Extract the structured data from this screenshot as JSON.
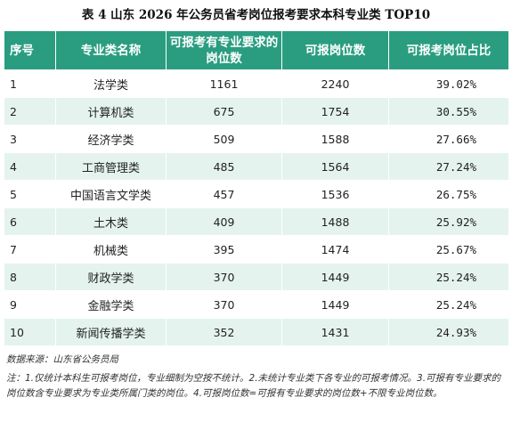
{
  "title": "表 4 山东 2026 年公务员省考岗位报考要求本科专业类 TOP10",
  "table": {
    "headers": [
      "序号",
      "专业类名称",
      "可报考有专业要求的岗位数",
      "可报岗位数",
      "可报考岗位占比"
    ],
    "rows": [
      [
        "1",
        "法学类",
        "1161",
        "2240",
        "39.02%"
      ],
      [
        "2",
        "计算机类",
        "675",
        "1754",
        "30.55%"
      ],
      [
        "3",
        "经济学类",
        "509",
        "1588",
        "27.66%"
      ],
      [
        "4",
        "工商管理类",
        "485",
        "1564",
        "27.24%"
      ],
      [
        "5",
        "中国语言文学类",
        "457",
        "1536",
        "26.75%"
      ],
      [
        "6",
        "土木类",
        "409",
        "1488",
        "25.92%"
      ],
      [
        "7",
        "机械类",
        "395",
        "1474",
        "25.67%"
      ],
      [
        "8",
        "财政学类",
        "370",
        "1449",
        "25.24%"
      ],
      [
        "9",
        "金融学类",
        "370",
        "1449",
        "25.24%"
      ],
      [
        "10",
        "新闻传播学类",
        "352",
        "1431",
        "24.93%"
      ]
    ]
  },
  "source": "数据来源：山东省公务员局",
  "note": "注：1.仅统计本科生可报考岗位，专业细制为空按不统计。2.未统计专业类下各专业的可报考情况。3.可报有专业要求的岗位数含专业要求为专业类所属门类的岗位。4.可报岗位数=可报有专业要求的岗位数+不限专业岗位数。",
  "colors": {
    "header_bg": "#2a9d80",
    "stripe_bg": "#e4f3ee"
  }
}
